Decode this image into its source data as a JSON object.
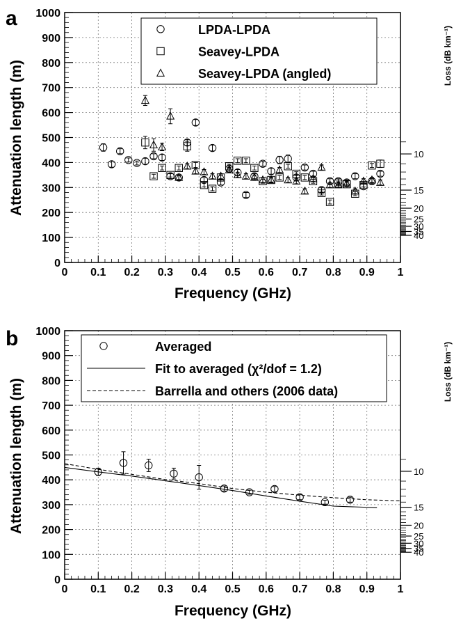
{
  "chart_data": [
    {
      "panel_label": "a",
      "type": "scatter",
      "xlabel": "Frequency (GHz)",
      "ylabel": "Attenuation length (m)",
      "right_axis_label": "Loss (dB km⁻¹)",
      "xlim": [
        0,
        1
      ],
      "ylim": [
        0,
        1000
      ],
      "x_ticks": [
        0,
        0.1,
        0.2,
        0.3,
        0.4,
        0.5,
        0.6,
        0.7,
        0.8,
        0.9,
        1
      ],
      "x_tick_labels": [
        "0",
        "0.1",
        "0.2",
        "0.3",
        "0.4",
        "0.5",
        "0.6",
        "0.7",
        "0.8",
        "0.9",
        "1"
      ],
      "y_ticks": [
        0,
        100,
        200,
        300,
        400,
        500,
        600,
        700,
        800,
        900,
        1000
      ],
      "y_tick_labels": [
        "0",
        "100",
        "200",
        "300",
        "400",
        "500",
        "600",
        "700",
        "800",
        "900",
        "1000"
      ],
      "right_ticks": [
        10,
        15,
        20,
        25,
        30,
        35,
        40
      ],
      "right_tick_labels": [
        "10",
        "15",
        "20",
        "25",
        "30",
        "35",
        "40"
      ],
      "grid": true,
      "legend_position": "top-center",
      "series": [
        {
          "name": "LPDA-LPDA",
          "marker": "circle",
          "points": [
            [
              0.115,
              460,
              15
            ],
            [
              0.14,
              393,
              12
            ],
            [
              0.165,
              445,
              10
            ],
            [
              0.19,
              410,
              8
            ],
            [
              0.215,
              398,
              8
            ],
            [
              0.24,
              405,
              12
            ],
            [
              0.265,
              425,
              10
            ],
            [
              0.29,
              420,
              12
            ],
            [
              0.315,
              345,
              10
            ],
            [
              0.34,
              340,
              10
            ],
            [
              0.365,
              480,
              12
            ],
            [
              0.39,
              560,
              12
            ],
            [
              0.415,
              330,
              10
            ],
            [
              0.44,
              458,
              12
            ],
            [
              0.465,
              320,
              10
            ],
            [
              0.49,
              375,
              10
            ],
            [
              0.515,
              360,
              12
            ],
            [
              0.54,
              270,
              10
            ],
            [
              0.565,
              345,
              10
            ],
            [
              0.59,
              395,
              10
            ],
            [
              0.615,
              365,
              12
            ],
            [
              0.64,
              410,
              15
            ],
            [
              0.665,
              415,
              15
            ],
            [
              0.69,
              340,
              12
            ],
            [
              0.715,
              380,
              10
            ],
            [
              0.74,
              355,
              10
            ],
            [
              0.765,
              290,
              10
            ],
            [
              0.79,
              325,
              10
            ],
            [
              0.815,
              325,
              10
            ],
            [
              0.84,
              320,
              10
            ],
            [
              0.865,
              345,
              10
            ],
            [
              0.89,
              305,
              10
            ],
            [
              0.915,
              325,
              10
            ],
            [
              0.94,
              355,
              10
            ]
          ]
        },
        {
          "name": "Seavey-LPDA",
          "marker": "square",
          "points": [
            [
              0.24,
              480,
              25
            ],
            [
              0.265,
              345,
              8
            ],
            [
              0.29,
              378,
              8
            ],
            [
              0.315,
              350,
              8
            ],
            [
              0.34,
              378,
              8
            ],
            [
              0.365,
              465,
              20
            ],
            [
              0.39,
              390,
              10
            ],
            [
              0.415,
              310,
              8
            ],
            [
              0.44,
              295,
              8
            ],
            [
              0.465,
              340,
              8
            ],
            [
              0.49,
              385,
              8
            ],
            [
              0.515,
              407,
              8
            ],
            [
              0.54,
              407,
              8
            ],
            [
              0.565,
              378,
              8
            ],
            [
              0.59,
              325,
              8
            ],
            [
              0.615,
              330,
              8
            ],
            [
              0.64,
              340,
              8
            ],
            [
              0.665,
              385,
              8
            ],
            [
              0.69,
              355,
              8
            ],
            [
              0.715,
              340,
              8
            ],
            [
              0.74,
              325,
              8
            ],
            [
              0.765,
              278,
              8
            ],
            [
              0.79,
              242,
              8
            ],
            [
              0.815,
              315,
              8
            ],
            [
              0.84,
              313,
              8
            ],
            [
              0.865,
              275,
              8
            ],
            [
              0.89,
              310,
              8
            ],
            [
              0.915,
              388,
              8
            ],
            [
              0.94,
              395,
              15
            ]
          ]
        },
        {
          "name": "Seavey-LPDA (angled)",
          "marker": "triangle",
          "points": [
            [
              0.24,
              648,
              20
            ],
            [
              0.265,
              470,
              25
            ],
            [
              0.29,
              462,
              15
            ],
            [
              0.315,
              585,
              30
            ],
            [
              0.34,
              340,
              8
            ],
            [
              0.365,
              385,
              10
            ],
            [
              0.39,
              365,
              10
            ],
            [
              0.415,
              362,
              10
            ],
            [
              0.44,
              345,
              10
            ],
            [
              0.465,
              345,
              10
            ],
            [
              0.49,
              370,
              10
            ],
            [
              0.515,
              350,
              10
            ],
            [
              0.54,
              345,
              10
            ],
            [
              0.565,
              340,
              10
            ],
            [
              0.59,
              330,
              10
            ],
            [
              0.615,
              330,
              10
            ],
            [
              0.64,
              370,
              10
            ],
            [
              0.665,
              330,
              10
            ],
            [
              0.69,
              325,
              10
            ],
            [
              0.715,
              285,
              10
            ],
            [
              0.74,
              335,
              10
            ],
            [
              0.765,
              380,
              10
            ],
            [
              0.79,
              310,
              10
            ],
            [
              0.815,
              310,
              10
            ],
            [
              0.84,
              315,
              10
            ],
            [
              0.865,
              285,
              10
            ],
            [
              0.89,
              325,
              10
            ],
            [
              0.915,
              330,
              10
            ],
            [
              0.94,
              320,
              10
            ]
          ]
        }
      ]
    },
    {
      "panel_label": "b",
      "type": "scatter",
      "xlabel": "Frequency (GHz)",
      "ylabel": "Attenuation length (m)",
      "right_axis_label": "Loss (dB km⁻¹)",
      "xlim": [
        0,
        1
      ],
      "ylim": [
        0,
        1000
      ],
      "x_ticks": [
        0,
        0.1,
        0.2,
        0.3,
        0.4,
        0.5,
        0.6,
        0.7,
        0.8,
        0.9,
        1
      ],
      "x_tick_labels": [
        "0",
        "0.1",
        "0.2",
        "0.3",
        "0.4",
        "0.5",
        "0.6",
        "0.7",
        "0.8",
        "0.9",
        "1"
      ],
      "y_ticks": [
        0,
        100,
        200,
        300,
        400,
        500,
        600,
        700,
        800,
        900,
        1000
      ],
      "y_tick_labels": [
        "0",
        "100",
        "200",
        "300",
        "400",
        "500",
        "600",
        "700",
        "800",
        "900",
        "1000"
      ],
      "right_ticks": [
        10,
        15,
        20,
        25,
        30,
        35,
        40
      ],
      "right_tick_labels": [
        "10",
        "15",
        "20",
        "25",
        "30",
        "35",
        "40"
      ],
      "grid": true,
      "legend_position": "top-center",
      "series": [
        {
          "name": "Averaged",
          "marker": "circle",
          "points": [
            [
              0.1,
              432,
              15
            ],
            [
              0.175,
              468,
              45
            ],
            [
              0.25,
              458,
              25
            ],
            [
              0.325,
              425,
              22
            ],
            [
              0.4,
              410,
              48
            ],
            [
              0.475,
              365,
              10
            ],
            [
              0.55,
              350,
              8
            ],
            [
              0.625,
              363,
              10
            ],
            [
              0.7,
              330,
              10
            ],
            [
              0.775,
              310,
              8
            ],
            [
              0.85,
              320,
              10
            ]
          ]
        }
      ],
      "lines": [
        {
          "name": "Fit to averaged (χ²/dof = 1.2)",
          "style": "solid",
          "points": [
            [
              0,
              450
            ],
            [
              0.1,
              432
            ],
            [
              0.2,
              415
            ],
            [
              0.3,
              396
            ],
            [
              0.4,
              377
            ],
            [
              0.5,
              357
            ],
            [
              0.6,
              335
            ],
            [
              0.7,
              314
            ],
            [
              0.8,
              294
            ],
            [
              0.93,
              288
            ]
          ]
        },
        {
          "name": "Barrella and others (2006 data)",
          "style": "dashed",
          "points": [
            [
              0,
              465
            ],
            [
              0.1,
              442
            ],
            [
              0.2,
              422
            ],
            [
              0.3,
              401
            ],
            [
              0.4,
              385
            ],
            [
              0.5,
              365
            ],
            [
              0.6,
              350
            ],
            [
              0.7,
              338
            ],
            [
              0.8,
              328
            ],
            [
              0.9,
              320
            ],
            [
              1,
              315
            ]
          ]
        }
      ]
    }
  ]
}
